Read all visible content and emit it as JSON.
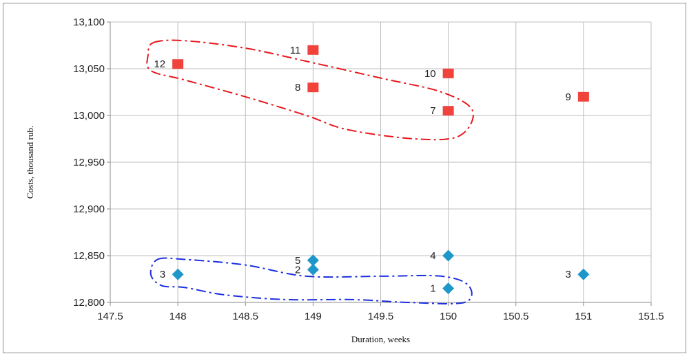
{
  "chart_data": {
    "type": "scatter",
    "title": "",
    "xlabel": "Duration, weeks",
    "ylabel": "Costs, thousand rub.",
    "xlim": [
      147.5,
      151.5
    ],
    "ylim": [
      12800,
      13100
    ],
    "x_ticks": [
      "147.5",
      "148",
      "148.5",
      "149",
      "149.5",
      "150",
      "150.5",
      "151",
      "151.5"
    ],
    "y_ticks": [
      "12,800",
      "12,850",
      "12,900",
      "12,950",
      "13,000",
      "13,050",
      "13,100"
    ],
    "grid": "vertical and horizontal major gridlines",
    "series": [
      {
        "marker": "diamond",
        "color": "#1f97c9",
        "points": [
          {
            "label": "3",
            "x": 148,
            "y": 12830
          },
          {
            "label": "5",
            "x": 149,
            "y": 12845
          },
          {
            "label": "2",
            "x": 149,
            "y": 12835
          },
          {
            "label": "4",
            "x": 150,
            "y": 12850
          },
          {
            "label": "1",
            "x": 150,
            "y": 12815
          },
          {
            "label": "3",
            "x": 151,
            "y": 12830
          }
        ]
      },
      {
        "marker": "square",
        "color": "#f0433c",
        "points": [
          {
            "label": "12",
            "x": 148,
            "y": 13055
          },
          {
            "label": "11",
            "x": 149,
            "y": 13070
          },
          {
            "label": "8",
            "x": 149,
            "y": 13030
          },
          {
            "label": "10",
            "x": 150,
            "y": 13045
          },
          {
            "label": "7",
            "x": 150,
            "y": 13005
          },
          {
            "label": "9",
            "x": 151,
            "y": 13020
          }
        ]
      }
    ],
    "annotations": [
      {
        "shape": "dashed-outline",
        "color": "#e8161b",
        "encloses": [
          "12",
          "11",
          "8",
          "10",
          "7"
        ]
      },
      {
        "shape": "dashed-outline",
        "color": "#1b2ee0",
        "encloses": [
          "3",
          "5",
          "2",
          "1"
        ]
      }
    ]
  }
}
